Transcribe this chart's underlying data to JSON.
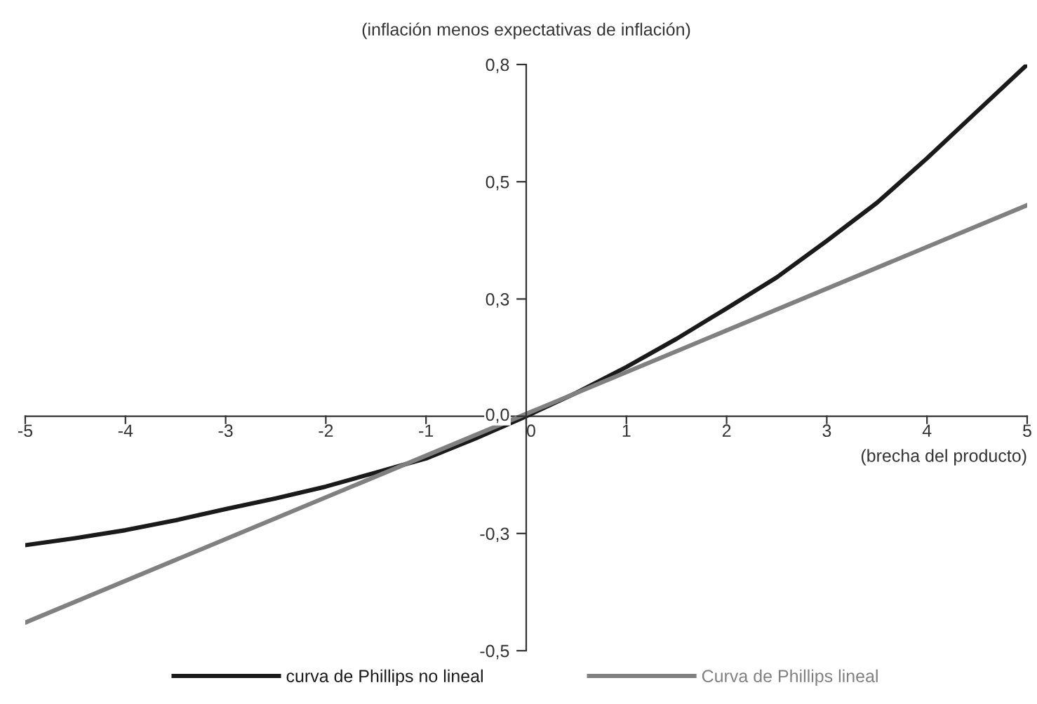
{
  "chart_data": {
    "type": "line",
    "ylabel": "(inflación menos expectativas de inflación)",
    "xlabel": "(brecha del producto)",
    "xlim": [
      -5,
      5
    ],
    "xticks": [
      -5,
      -4,
      -3,
      -2,
      -1,
      0,
      1,
      2,
      3,
      4,
      5
    ],
    "ylim": [
      -0.5,
      0.75
    ],
    "yticks": [
      {
        "value": -0.5,
        "label": "-0,5"
      },
      {
        "value": -0.25,
        "label": "-0,3"
      },
      {
        "value": 0,
        "label": "0,0"
      },
      {
        "value": 0.25,
        "label": "0,3"
      },
      {
        "value": 0.5,
        "label": "0,5"
      },
      {
        "value": 0.75,
        "label": "0,8"
      }
    ],
    "legend": "bottom",
    "grid": false,
    "marker": "none",
    "line_style": "solid",
    "series": [
      {
        "name": "curva de Phillips no lineal",
        "color": "#1a1a1a",
        "x": [
          -5,
          -4.5,
          -4,
          -3.5,
          -3,
          -2.5,
          -2,
          -1.5,
          -1,
          -0.5,
          0,
          0.5,
          1,
          1.5,
          2,
          2.5,
          3,
          3.5,
          4,
          4.5,
          5
        ],
        "values": [
          -0.275,
          -0.26,
          -0.243,
          -0.222,
          -0.198,
          -0.175,
          -0.15,
          -0.12,
          -0.09,
          -0.047,
          0,
          0.05,
          0.105,
          0.165,
          0.23,
          0.296,
          0.374,
          0.455,
          0.55,
          0.65,
          0.75
        ]
      },
      {
        "name": "Curva de Phillips lineal",
        "color": "#808080",
        "x": [
          -5,
          5
        ],
        "values": [
          -0.44,
          0.45
        ]
      }
    ]
  }
}
